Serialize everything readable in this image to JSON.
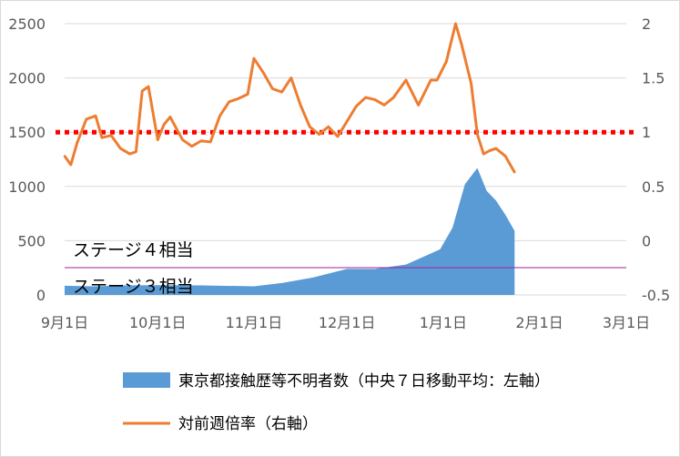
{
  "chart_data": {
    "type": "area+line",
    "x_tick_labels": [
      "9月1日",
      "10月1日",
      "11月1日",
      "12月1日",
      "1月1日",
      "2月1日",
      "3月1日"
    ],
    "y_left_ticks": [
      0,
      500,
      1000,
      1500,
      2000,
      2500
    ],
    "y_right_ticks": [
      "-0.5",
      "0",
      "0.5",
      "1",
      "1.5",
      "2"
    ],
    "ylim_left": [
      0,
      2500
    ],
    "ylim_right": [
      -0.5,
      2
    ],
    "xlim": [
      "2020-09-01",
      "2021-03-01"
    ],
    "grid": "horizontal",
    "legend_position": "bottom",
    "series": [
      {
        "name": "東京都接触歴等不明者数（中央７日移動平均：左軸）",
        "type": "area",
        "axis": "left",
        "color": "#5B9BD5",
        "x": [
          "2020-09-01",
          "2020-09-10",
          "2020-09-20",
          "2020-10-01",
          "2020-10-15",
          "2020-11-01",
          "2020-11-10",
          "2020-11-20",
          "2020-12-01",
          "2020-12-10",
          "2020-12-20",
          "2020-12-31",
          "2021-01-04",
          "2021-01-08",
          "2021-01-12",
          "2021-01-15",
          "2021-01-18",
          "2021-01-21",
          "2021-01-24"
        ],
        "values": [
          85,
          80,
          88,
          90,
          88,
          80,
          110,
          160,
          240,
          240,
          280,
          420,
          620,
          1020,
          1170,
          960,
          870,
          740,
          590
        ]
      },
      {
        "name": "対前週倍率（右軸）",
        "type": "line",
        "axis": "right",
        "color": "#ED7D31",
        "x": [
          "2020-09-01",
          "2020-09-03",
          "2020-09-05",
          "2020-09-08",
          "2020-09-11",
          "2020-09-13",
          "2020-09-16",
          "2020-09-19",
          "2020-09-22",
          "2020-09-24",
          "2020-09-26",
          "2020-09-28",
          "2020-10-01",
          "2020-10-03",
          "2020-10-05",
          "2020-10-09",
          "2020-10-12",
          "2020-10-15",
          "2020-10-18",
          "2020-10-21",
          "2020-10-24",
          "2020-10-27",
          "2020-10-30",
          "2020-11-01",
          "2020-11-04",
          "2020-11-07",
          "2020-11-10",
          "2020-11-13",
          "2020-11-16",
          "2020-11-19",
          "2020-11-22",
          "2020-11-25",
          "2020-11-28",
          "2020-12-01",
          "2020-12-04",
          "2020-12-07",
          "2020-12-10",
          "2020-12-13",
          "2020-12-16",
          "2020-12-20",
          "2020-12-24",
          "2020-12-28",
          "2020-12-30",
          "2021-01-02",
          "2021-01-05",
          "2021-01-07",
          "2021-01-10",
          "2021-01-12",
          "2021-01-14",
          "2021-01-16",
          "2021-01-18",
          "2021-01-21",
          "2021-01-24"
        ],
        "values": [
          0.78,
          0.7,
          0.9,
          1.12,
          1.15,
          0.95,
          0.97,
          0.85,
          0.8,
          0.82,
          1.38,
          1.42,
          0.93,
          1.07,
          1.14,
          0.93,
          0.87,
          0.92,
          0.91,
          1.15,
          1.28,
          1.31,
          1.35,
          1.68,
          1.55,
          1.4,
          1.37,
          1.5,
          1.25,
          1.05,
          0.98,
          1.05,
          0.96,
          1.1,
          1.24,
          1.32,
          1.3,
          1.25,
          1.32,
          1.48,
          1.25,
          1.48,
          1.48,
          1.65,
          2.0,
          1.8,
          1.45,
          0.98,
          0.8,
          0.83,
          0.85,
          0.78,
          0.63
        ]
      }
    ],
    "reference_lines": [
      {
        "axis": "right",
        "value": 1,
        "style": "dotted",
        "color": "#FF0000"
      },
      {
        "axis": "left",
        "value": 252,
        "label": "ステージ４相当",
        "color": "#A020A0"
      },
      {
        "axis": "left",
        "value": 0,
        "label": "ステージ３相当",
        "color": "#A020A0"
      }
    ]
  },
  "legend": {
    "area_label": "東京都接触歴等不明者数（中央７日移動平均：左軸）",
    "line_label": "対前週倍率（右軸）"
  },
  "colors": {
    "area": "#5B9BD5",
    "line": "#ED7D31",
    "ref_dotted": "#FF0000",
    "stage_line": "#A020A0",
    "grid": "#D9D9D9"
  }
}
